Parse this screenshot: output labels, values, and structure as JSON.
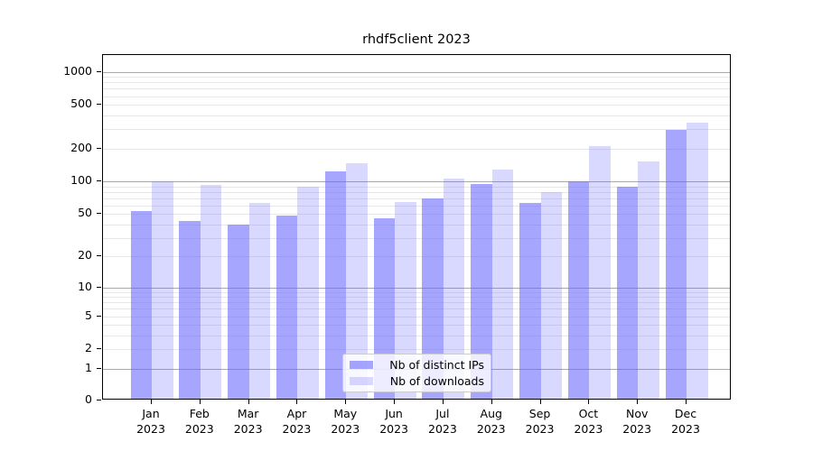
{
  "title": "rhdf5client 2023",
  "chart_data": {
    "type": "bar",
    "title": "rhdf5client 2023",
    "categories": [
      "Jan",
      "Feb",
      "Mar",
      "Apr",
      "May",
      "Jun",
      "Jul",
      "Aug",
      "Sep",
      "Oct",
      "Nov",
      "Dec"
    ],
    "year_label": "2023",
    "series": [
      {
        "name": "Nb of distinct IPs",
        "color": "rgba(102,102,255,0.58)",
        "values": [
          53,
          43,
          40,
          48,
          124,
          46,
          70,
          95,
          63,
          100,
          90,
          295
        ]
      },
      {
        "name": "Nb of downloads",
        "color": "rgba(102,102,255,0.25)",
        "values": [
          100,
          92,
          63,
          90,
          146,
          65,
          107,
          129,
          80,
          212,
          153,
          343
        ]
      }
    ],
    "y_ticks": [
      0,
      1,
      2,
      5,
      10,
      20,
      50,
      100,
      200,
      500,
      1000
    ],
    "y_scale": "log10(1+x)",
    "ylim": [
      0,
      1430
    ],
    "grid": true,
    "legend_position": "lower center"
  },
  "colors": {
    "grid_major": "#a9a9a9",
    "grid_minor": "#e7e7e7",
    "axis": "#000000",
    "background": "#ffffff"
  }
}
